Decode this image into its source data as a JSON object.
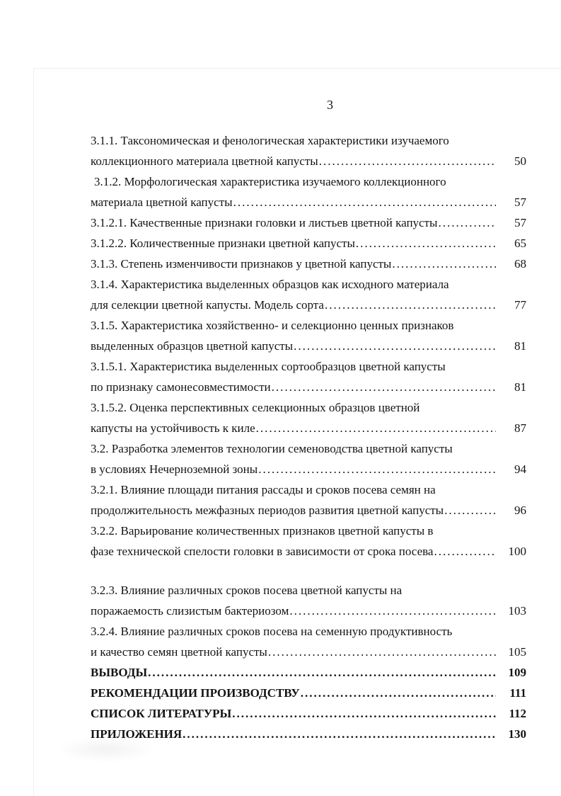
{
  "page": {
    "number": "3"
  },
  "toc": {
    "rows": [
      {
        "text": "3.1.1. Таксономическая и фенологическая характеристики изучаемого"
      },
      {
        "text": "коллекционного материала цветной капусты",
        "page": "50"
      },
      {
        "text": "3.1.2. Морфологическая характеристика изучаемого коллекционного",
        "indent": true
      },
      {
        "text": "материала цветной капусты",
        "page": "57"
      },
      {
        "text": "3.1.2.1. Качественные признаки головки и листьев цветной капусты",
        "page": "57"
      },
      {
        "text": "3.1.2.2. Количественные признаки цветной капусты",
        "page": "65"
      },
      {
        "text": "3.1.3. Степень изменчивости признаков у цветной капусты",
        "page": "68"
      },
      {
        "text": "3.1.4. Характеристика выделенных образцов как исходного материала"
      },
      {
        "text": "для селекции цветной капусты. Модель сорта",
        "page": "77"
      },
      {
        "text": "3.1.5. Характеристика хозяйственно- и селекционно ценных признаков"
      },
      {
        "text": "выделенных образцов цветной капусты",
        "page": "81"
      },
      {
        "text": "3.1.5.1. Характеристика выделенных сортообразцов цветной капусты"
      },
      {
        "text": "по признаку самонесовместимости",
        "page": "81"
      },
      {
        "text": "3.1.5.2. Оценка перспективных селекционных образцов цветной"
      },
      {
        "text": "капусты на устойчивость к киле",
        "page": "87"
      },
      {
        "text": "3.2. Разработка элементов технологии семеноводства цветной капусты"
      },
      {
        "text": "в условиях Нечерноземной зоны",
        "page": "94"
      },
      {
        "text": "3.2.1. Влияние площади питания рассады и сроков посева семян на"
      },
      {
        "text": "продолжительность межфазных периодов развития цветной капусты",
        "page": "96"
      },
      {
        "text": "3.2.2. Варьирование количественных признаков цветной капусты в"
      },
      {
        "text": "фазе технической спелости головки в зависимости от срока посева",
        "page": "100"
      },
      {
        "text": "3.2.3. Влияние различных сроков посева цветной капусты на",
        "gap_before": true
      },
      {
        "text": "поражаемость слизистым бактериозом",
        "page": "103"
      },
      {
        "text": "3.2.4. Влияние различных сроков посева на семенную продуктивность"
      },
      {
        "text": "и качество семян цветной капусты",
        "page": "105"
      },
      {
        "text": "ВЫВОДЫ",
        "page": "109",
        "bold": true
      },
      {
        "text": "РЕКОМЕНДАЦИИ ПРОИЗВОДСТВУ",
        "page": "111",
        "bold": true
      },
      {
        "text": "СПИСОК ЛИТЕРАТУРЫ",
        "page": "112",
        "bold": true
      },
      {
        "text": "ПРИЛОЖЕНИЯ",
        "page": "130",
        "bold": true
      }
    ]
  }
}
